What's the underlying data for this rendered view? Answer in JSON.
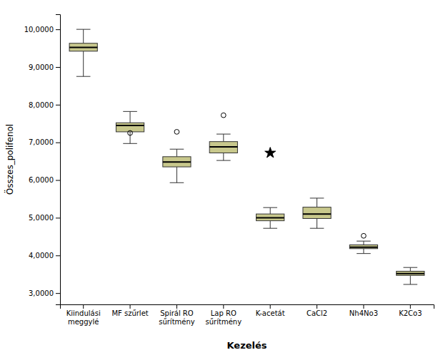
{
  "chart_data": {
    "type": "box",
    "categories": [
      "Kiindulási\nmeggylé",
      "MF szűrlet",
      "Spirál RO\nsűrítmény",
      "Lap RO\nsűrítmény",
      "K-acetát",
      "CaCl2",
      "Nh4No3",
      "K2Co3"
    ],
    "boxes": [
      {
        "q1": 9.42,
        "median": 9.52,
        "q3": 9.63,
        "whislo": 8.75,
        "whishi": 10.0,
        "fliers": [],
        "marker": "circle"
      },
      {
        "q1": 7.28,
        "median": 7.45,
        "q3": 7.52,
        "whislo": 6.97,
        "whishi": 7.82,
        "fliers": [
          7.25
        ],
        "marker": "circle"
      },
      {
        "q1": 6.35,
        "median": 6.48,
        "q3": 6.62,
        "whislo": 5.93,
        "whishi": 6.82,
        "fliers": [
          7.28
        ],
        "marker": "circle"
      },
      {
        "q1": 6.72,
        "median": 6.88,
        "q3": 7.02,
        "whislo": 6.52,
        "whishi": 7.22,
        "fliers": [
          7.72
        ],
        "marker": "circle"
      },
      {
        "q1": 4.92,
        "median": 5.0,
        "q3": 5.1,
        "whislo": 4.72,
        "whishi": 5.27,
        "fliers": [
          6.72
        ],
        "marker": "star"
      },
      {
        "q1": 4.98,
        "median": 5.1,
        "q3": 5.28,
        "whislo": 4.72,
        "whishi": 5.52,
        "fliers": [],
        "marker": "circle"
      },
      {
        "q1": 4.18,
        "median": 4.22,
        "q3": 4.28,
        "whislo": 4.05,
        "whishi": 4.38,
        "fliers": [
          4.52
        ],
        "marker": "circle"
      },
      {
        "q1": 3.47,
        "median": 3.52,
        "q3": 3.58,
        "whislo": 3.23,
        "whishi": 3.68,
        "fliers": [],
        "marker": "circle"
      }
    ],
    "xlabel": "Kezelés",
    "ylabel": "Összes_polifenol",
    "ylim": [
      2.7,
      10.4
    ],
    "yticks": [
      {
        "value": 3.0,
        "label": "3,0000"
      },
      {
        "value": 4.0,
        "label": "4,0000"
      },
      {
        "value": 5.0,
        "label": "5,0000"
      },
      {
        "value": 6.0,
        "label": "6,0000"
      },
      {
        "value": 7.0,
        "label": "7,0000"
      },
      {
        "value": 8.0,
        "label": "8,0000"
      },
      {
        "value": 9.0,
        "label": "9,0000"
      },
      {
        "value": 10.0,
        "label": "10,0000"
      }
    ],
    "color": "#c8c88c",
    "grid": false
  }
}
